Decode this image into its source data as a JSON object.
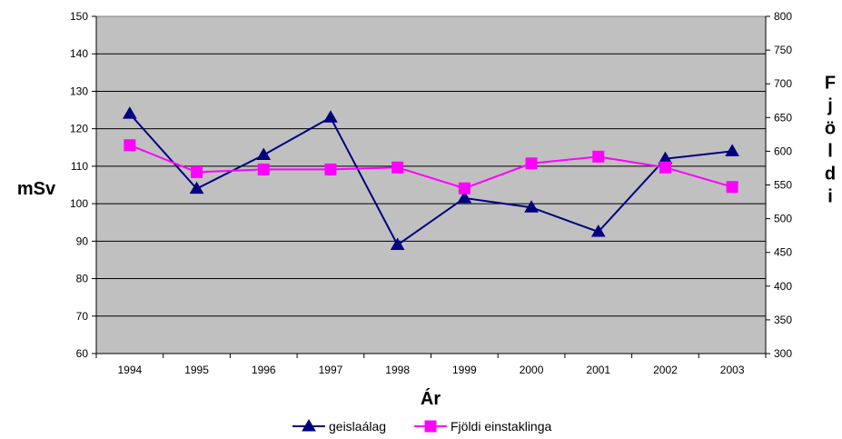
{
  "chart_data": {
    "type": "line",
    "categories": [
      "1994",
      "1995",
      "1996",
      "1997",
      "1998",
      "1999",
      "2000",
      "2001",
      "2002",
      "2003"
    ],
    "xlabel": "Ár",
    "ylabel": "mSv",
    "y2label": "Fjöldi",
    "ylim": [
      60,
      150
    ],
    "y2lim": [
      300,
      800
    ],
    "yticks": [
      "60",
      "70",
      "80",
      "90",
      "100",
      "110",
      "120",
      "130",
      "140",
      "150"
    ],
    "y2ticks": [
      "300",
      "350",
      "400",
      "450",
      "500",
      "550",
      "600",
      "650",
      "700",
      "750",
      "800"
    ],
    "grid": "horizontal",
    "legend_position": "bottom",
    "plot_background": "#c0c0c0",
    "series": [
      {
        "name": "geislaálag",
        "axis": "left",
        "color": "#000080",
        "marker": "triangle",
        "values": [
          124,
          104,
          113,
          123,
          89,
          101.5,
          99,
          92.5,
          112,
          114
        ]
      },
      {
        "name": "Fjöldi einstaklinga",
        "axis": "right",
        "color": "#ff00ff",
        "marker": "square",
        "values": [
          609,
          569,
          573,
          573,
          576,
          545,
          582,
          592,
          576,
          547
        ]
      }
    ]
  }
}
